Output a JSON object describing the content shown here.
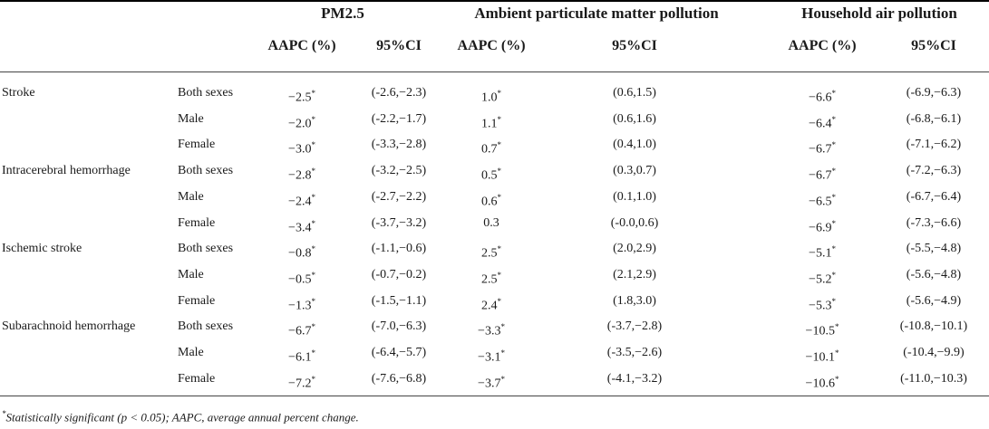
{
  "headers": {
    "groups": [
      "PM2.5",
      "Ambient particulate matter pollution",
      "Household air pollution"
    ],
    "aapc_label": "AAPC (%)",
    "ci_label": "95%CI"
  },
  "rows": [
    {
      "disease": "Stroke",
      "sex": "Both sexes",
      "pm_aapc": "−2.5*",
      "pm_ci": "(-2.6,−2.3)",
      "amb_aapc": "1.0*",
      "amb_ci": "(0.6,1.5)",
      "hh_aapc": "−6.6*",
      "hh_ci": "(-6.9,−6.3)"
    },
    {
      "disease": "",
      "sex": "Male",
      "pm_aapc": "−2.0*",
      "pm_ci": "(-2.2,−1.7)",
      "amb_aapc": "1.1*",
      "amb_ci": "(0.6,1.6)",
      "hh_aapc": "−6.4*",
      "hh_ci": "(-6.8,−6.1)"
    },
    {
      "disease": "",
      "sex": "Female",
      "pm_aapc": "−3.0*",
      "pm_ci": "(-3.3,−2.8)",
      "amb_aapc": "0.7*",
      "amb_ci": "(0.4,1.0)",
      "hh_aapc": "−6.7*",
      "hh_ci": "(-7.1,−6.2)"
    },
    {
      "disease": "Intracerebral hemorrhage",
      "sex": "Both sexes",
      "pm_aapc": "−2.8*",
      "pm_ci": "(-3.2,−2.5)",
      "amb_aapc": "0.5*",
      "amb_ci": "(0.3,0.7)",
      "hh_aapc": "−6.7*",
      "hh_ci": "(-7.2,−6.3)"
    },
    {
      "disease": "",
      "sex": "Male",
      "pm_aapc": "−2.4*",
      "pm_ci": "(-2.7,−2.2)",
      "amb_aapc": "0.6*",
      "amb_ci": "(0.1,1.0)",
      "hh_aapc": "−6.5*",
      "hh_ci": "(-6.7,−6.4)"
    },
    {
      "disease": "",
      "sex": "Female",
      "pm_aapc": "−3.4*",
      "pm_ci": "(-3.7,−3.2)",
      "amb_aapc": "0.3",
      "amb_ci": "(-0.0,0.6)",
      "hh_aapc": "−6.9*",
      "hh_ci": "(-7.3,−6.6)"
    },
    {
      "disease": "Ischemic stroke",
      "sex": "Both sexes",
      "pm_aapc": "−0.8*",
      "pm_ci": "(-1.1,−0.6)",
      "amb_aapc": "2.5*",
      "amb_ci": "(2.0,2.9)",
      "hh_aapc": "−5.1*",
      "hh_ci": "(-5.5,−4.8)"
    },
    {
      "disease": "",
      "sex": "Male",
      "pm_aapc": "−0.5*",
      "pm_ci": "(-0.7,−0.2)",
      "amb_aapc": "2.5*",
      "amb_ci": "(2.1,2.9)",
      "hh_aapc": "−5.2*",
      "hh_ci": "(-5.6,−4.8)"
    },
    {
      "disease": "",
      "sex": "Female",
      "pm_aapc": "−1.3*",
      "pm_ci": "(-1.5,−1.1)",
      "amb_aapc": "2.4*",
      "amb_ci": "(1.8,3.0)",
      "hh_aapc": "−5.3*",
      "hh_ci": "(-5.6,−4.9)"
    },
    {
      "disease": "Subarachnoid hemorrhage",
      "sex": "Both sexes",
      "pm_aapc": "−6.7*",
      "pm_ci": "(-7.0,−6.3)",
      "amb_aapc": "−3.3*",
      "amb_ci": "(-3.7,−2.8)",
      "hh_aapc": "−10.5*",
      "hh_ci": "(-10.8,−10.1)"
    },
    {
      "disease": "",
      "sex": "Male",
      "pm_aapc": "−6.1*",
      "pm_ci": "(-6.4,−5.7)",
      "amb_aapc": "−3.1*",
      "amb_ci": "(-3.5,−2.6)",
      "hh_aapc": "−10.1*",
      "hh_ci": "(-10.4,−9.9)"
    },
    {
      "disease": "",
      "sex": "Female",
      "pm_aapc": "−7.2*",
      "pm_ci": "(-7.6,−6.8)",
      "amb_aapc": "−3.7*",
      "amb_ci": "(-4.1,−3.2)",
      "hh_aapc": "−10.6*",
      "hh_ci": "(-11.0,−10.3)"
    }
  ],
  "footnote": {
    "marker": "*",
    "text": "Statistically significant (p < 0.05); AAPC, average annual percent change."
  }
}
